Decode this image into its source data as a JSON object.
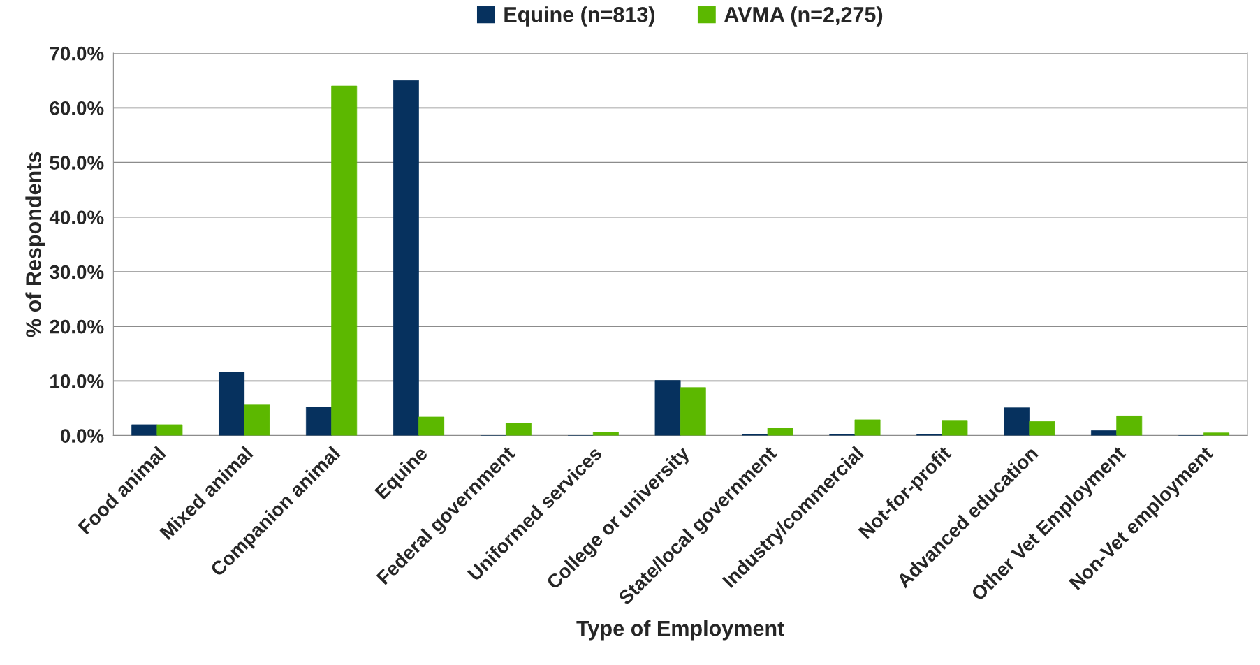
{
  "chart_data": {
    "type": "bar",
    "xlabel": "Type of Employment",
    "ylabel": "% of Respondents",
    "categories": [
      "Food animal",
      "Mixed animal",
      "Companion animal",
      "Equine",
      "Federal government",
      "Uniformed services",
      "College or university",
      "State/local government",
      "Industry/commercial",
      "Not-for-profit",
      "Advanced education",
      "Other Vet Employment",
      "Non-Vet employment"
    ],
    "series": [
      {
        "name": "Equine (n=813)",
        "color": "#06315e",
        "values": [
          2.0,
          11.6,
          5.2,
          65.0,
          0,
          0,
          10.1,
          0.2,
          0.2,
          0.2,
          5.1,
          0.9,
          0
        ]
      },
      {
        "name": "AVMA (n=2,275)",
        "color": "#5cb800",
        "values": [
          2.0,
          5.6,
          64.0,
          3.4,
          2.3,
          0.6,
          8.8,
          1.4,
          2.9,
          2.8,
          2.6,
          3.6,
          0.5
        ]
      }
    ],
    "ylim": [
      0,
      70
    ],
    "yticks": [
      {
        "value": 0,
        "label": "0.0%"
      },
      {
        "value": 10,
        "label": "10.0%"
      },
      {
        "value": 20,
        "label": "20.0%"
      },
      {
        "value": 30,
        "label": "30.0%"
      },
      {
        "value": 40,
        "label": "40.0%"
      },
      {
        "value": 50,
        "label": "50.0%"
      },
      {
        "value": 60,
        "label": "60.0%"
      },
      {
        "value": 70,
        "label": "70.0%"
      }
    ],
    "grid": "y",
    "legend": "top"
  }
}
